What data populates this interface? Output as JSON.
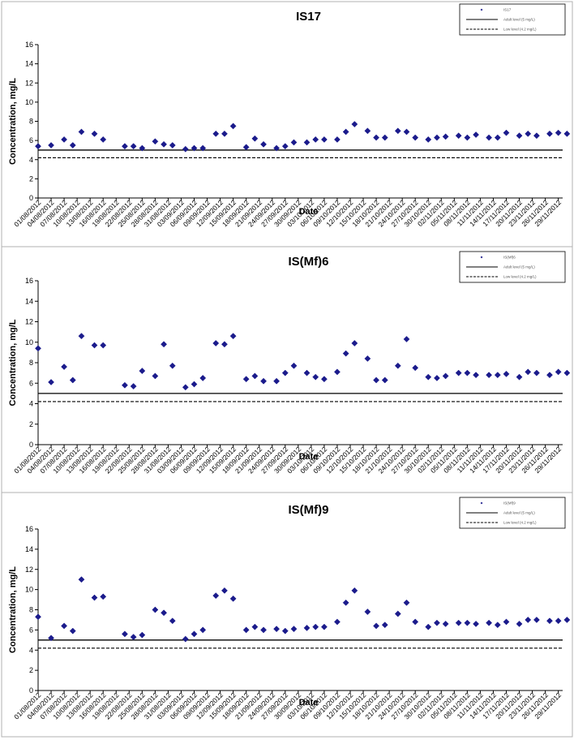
{
  "chart_data": [
    {
      "type": "scatter",
      "title": "IS17",
      "xlabel": "Date",
      "ylabel": "Concentration, mg/L",
      "ylim": [
        0,
        16
      ],
      "yticks": [
        "0",
        "2",
        "4",
        "6",
        "8",
        "10",
        "12",
        "14",
        "16"
      ],
      "x_range": [
        "01/08/2012",
        "30/11/2012"
      ],
      "xticks": [
        "01/08/2012",
        "04/08/2012",
        "07/08/2012",
        "10/08/2012",
        "13/08/2012",
        "16/08/2012",
        "19/08/2012",
        "22/08/2012",
        "25/08/2012",
        "28/08/2012",
        "31/08/2012",
        "03/09/2012",
        "06/09/2012",
        "09/09/2012",
        "12/09/2012",
        "15/09/2012",
        "18/09/2012",
        "21/09/2012",
        "24/09/2012",
        "27/09/2012",
        "30/09/2012",
        "03/10/2012",
        "06/10/2012",
        "09/10/2012",
        "12/10/2012",
        "15/10/2012",
        "18/10/2012",
        "21/10/2012",
        "24/10/2012",
        "27/10/2012",
        "30/10/2012",
        "02/11/2012",
        "05/11/2012",
        "08/11/2012",
        "11/11/2012",
        "14/11/2012",
        "17/11/2012",
        "20/11/2012",
        "23/11/2012",
        "26/11/2012",
        "29/11/2012"
      ],
      "legend": {
        "position": "top-right",
        "entries": [
          "IS17",
          "Adult level (5 mg/L)",
          "Low level (4.2 mg/L)"
        ]
      },
      "grid": false,
      "series": [
        {
          "name": "IS17",
          "marker": "diamond",
          "color": "#1b1b8c",
          "points": [
            [
              "01/08/2012",
              5.4
            ],
            [
              "04/08/2012",
              5.5
            ],
            [
              "07/08/2012",
              6.1
            ],
            [
              "09/08/2012",
              5.5
            ],
            [
              "11/08/2012",
              6.9
            ],
            [
              "14/08/2012",
              6.7
            ],
            [
              "16/08/2012",
              6.1
            ],
            [
              "21/08/2012",
              5.4
            ],
            [
              "23/08/2012",
              5.4
            ],
            [
              "25/08/2012",
              5.2
            ],
            [
              "28/08/2012",
              5.9
            ],
            [
              "30/08/2012",
              5.6
            ],
            [
              "01/09/2012",
              5.5
            ],
            [
              "04/09/2012",
              5.1
            ],
            [
              "06/09/2012",
              5.2
            ],
            [
              "08/09/2012",
              5.2
            ],
            [
              "11/09/2012",
              6.7
            ],
            [
              "13/09/2012",
              6.7
            ],
            [
              "15/09/2012",
              7.5
            ],
            [
              "18/09/2012",
              5.3
            ],
            [
              "20/09/2012",
              6.2
            ],
            [
              "22/09/2012",
              5.6
            ],
            [
              "25/09/2012",
              5.2
            ],
            [
              "27/09/2012",
              5.4
            ],
            [
              "29/09/2012",
              5.8
            ],
            [
              "02/10/2012",
              5.8
            ],
            [
              "04/10/2012",
              6.1
            ],
            [
              "06/10/2012",
              6.1
            ],
            [
              "09/10/2012",
              6.1
            ],
            [
              "11/10/2012",
              6.9
            ],
            [
              "13/10/2012",
              7.7
            ],
            [
              "16/10/2012",
              7.0
            ],
            [
              "18/10/2012",
              6.3
            ],
            [
              "20/10/2012",
              6.3
            ],
            [
              "23/10/2012",
              7.0
            ],
            [
              "25/10/2012",
              6.9
            ],
            [
              "27/10/2012",
              6.3
            ],
            [
              "30/10/2012",
              6.1
            ],
            [
              "01/11/2012",
              6.3
            ],
            [
              "03/11/2012",
              6.4
            ],
            [
              "06/11/2012",
              6.5
            ],
            [
              "08/11/2012",
              6.3
            ],
            [
              "10/11/2012",
              6.6
            ],
            [
              "13/11/2012",
              6.3
            ],
            [
              "15/11/2012",
              6.3
            ],
            [
              "17/11/2012",
              6.8
            ],
            [
              "20/11/2012",
              6.5
            ],
            [
              "22/11/2012",
              6.7
            ],
            [
              "24/11/2012",
              6.5
            ],
            [
              "27/11/2012",
              6.7
            ],
            [
              "29/11/2012",
              6.8
            ],
            [
              "01/12/2012",
              6.7
            ]
          ]
        },
        {
          "name": "Adult level (5 mg/L)",
          "style": "solid",
          "value": 5.0
        },
        {
          "name": "Low level (4.2 mg/L)",
          "style": "dashed",
          "value": 4.2
        }
      ]
    },
    {
      "type": "scatter",
      "title": "IS(Mf)6",
      "xlabel": "Date",
      "ylabel": "Concentration, mg/L",
      "ylim": [
        0,
        16
      ],
      "yticks": [
        "0",
        "2",
        "4",
        "6",
        "8",
        "10",
        "12",
        "14",
        "16"
      ],
      "x_range": [
        "01/08/2012",
        "30/11/2012"
      ],
      "xticks": [
        "01/08/2012",
        "04/08/2012",
        "07/08/2012",
        "10/08/2012",
        "13/08/2012",
        "16/08/2012",
        "19/08/2012",
        "22/08/2012",
        "25/08/2012",
        "28/08/2012",
        "31/08/2012",
        "03/09/2012",
        "06/09/2012",
        "09/09/2012",
        "12/09/2012",
        "15/09/2012",
        "18/09/2012",
        "21/09/2012",
        "24/09/2012",
        "27/09/2012",
        "30/09/2012",
        "03/10/2012",
        "06/10/2012",
        "09/10/2012",
        "12/10/2012",
        "15/10/2012",
        "18/10/2012",
        "21/10/2012",
        "24/10/2012",
        "27/10/2012",
        "30/10/2012",
        "02/11/2012",
        "05/11/2012",
        "08/11/2012",
        "11/11/2012",
        "14/11/2012",
        "17/11/2012",
        "20/11/2012",
        "23/11/2012",
        "26/11/2012",
        "29/11/2012"
      ],
      "legend": {
        "position": "top-right",
        "entries": [
          "IS(Mf)6",
          "Adult level (5 mg/L)",
          "Low level (4.2 mg/L)"
        ]
      },
      "grid": false,
      "series": [
        {
          "name": "IS(Mf)6",
          "marker": "diamond",
          "color": "#1b1b8c",
          "points": [
            [
              "01/08/2012",
              9.4
            ],
            [
              "04/08/2012",
              6.1
            ],
            [
              "07/08/2012",
              7.6
            ],
            [
              "09/08/2012",
              6.3
            ],
            [
              "11/08/2012",
              10.6
            ],
            [
              "14/08/2012",
              9.7
            ],
            [
              "16/08/2012",
              9.7
            ],
            [
              "21/08/2012",
              5.8
            ],
            [
              "23/08/2012",
              5.7
            ],
            [
              "25/08/2012",
              7.2
            ],
            [
              "28/08/2012",
              6.7
            ],
            [
              "30/08/2012",
              9.8
            ],
            [
              "01/09/2012",
              7.7
            ],
            [
              "04/09/2012",
              5.6
            ],
            [
              "06/09/2012",
              5.9
            ],
            [
              "08/09/2012",
              6.5
            ],
            [
              "11/09/2012",
              9.9
            ],
            [
              "13/09/2012",
              9.8
            ],
            [
              "15/09/2012",
              10.6
            ],
            [
              "18/09/2012",
              6.4
            ],
            [
              "20/09/2012",
              6.7
            ],
            [
              "22/09/2012",
              6.2
            ],
            [
              "25/09/2012",
              6.2
            ],
            [
              "27/09/2012",
              7.0
            ],
            [
              "29/09/2012",
              7.7
            ],
            [
              "02/10/2012",
              7.0
            ],
            [
              "04/10/2012",
              6.6
            ],
            [
              "06/10/2012",
              6.4
            ],
            [
              "09/10/2012",
              7.1
            ],
            [
              "11/10/2012",
              8.9
            ],
            [
              "13/10/2012",
              9.9
            ],
            [
              "16/10/2012",
              8.4
            ],
            [
              "18/10/2012",
              6.3
            ],
            [
              "20/10/2012",
              6.3
            ],
            [
              "23/10/2012",
              7.7
            ],
            [
              "25/10/2012",
              10.3
            ],
            [
              "27/10/2012",
              7.5
            ],
            [
              "30/10/2012",
              6.6
            ],
            [
              "01/11/2012",
              6.5
            ],
            [
              "03/11/2012",
              6.7
            ],
            [
              "06/11/2012",
              7.0
            ],
            [
              "08/11/2012",
              7.0
            ],
            [
              "10/11/2012",
              6.8
            ],
            [
              "13/11/2012",
              6.8
            ],
            [
              "15/11/2012",
              6.8
            ],
            [
              "17/11/2012",
              6.9
            ],
            [
              "20/11/2012",
              6.6
            ],
            [
              "22/11/2012",
              7.1
            ],
            [
              "24/11/2012",
              7.0
            ],
            [
              "27/11/2012",
              6.8
            ],
            [
              "29/11/2012",
              7.1
            ],
            [
              "01/12/2012",
              7.0
            ]
          ]
        },
        {
          "name": "Adult level (5 mg/L)",
          "style": "solid",
          "value": 5.0
        },
        {
          "name": "Low level (4.2 mg/L)",
          "style": "dashed",
          "value": 4.2
        }
      ]
    },
    {
      "type": "scatter",
      "title": "IS(Mf)9",
      "xlabel": "Date",
      "ylabel": "Concentration, mg/L",
      "ylim": [
        0,
        16
      ],
      "yticks": [
        "0",
        "2",
        "4",
        "6",
        "8",
        "10",
        "12",
        "14",
        "16"
      ],
      "x_range": [
        "01/08/2012",
        "30/11/2012"
      ],
      "xticks": [
        "01/08/2012",
        "04/08/2012",
        "07/08/2012",
        "10/08/2012",
        "13/08/2012",
        "16/08/2012",
        "19/08/2012",
        "22/08/2012",
        "25/08/2012",
        "28/08/2012",
        "31/08/2012",
        "03/09/2012",
        "06/09/2012",
        "09/09/2012",
        "12/09/2012",
        "15/09/2012",
        "18/09/2012",
        "21/09/2012",
        "24/09/2012",
        "27/09/2012",
        "30/09/2012",
        "03/10/2012",
        "06/10/2012",
        "09/10/2012",
        "12/10/2012",
        "15/10/2012",
        "18/10/2012",
        "21/10/2012",
        "24/10/2012",
        "27/10/2012",
        "30/10/2012",
        "02/11/2012",
        "05/11/2012",
        "08/11/2012",
        "11/11/2012",
        "14/11/2012",
        "17/11/2012",
        "20/11/2012",
        "23/11/2012",
        "26/11/2012",
        "29/11/2012"
      ],
      "legend": {
        "position": "top-right",
        "entries": [
          "IS(Mf)9",
          "Adult level (5 mg/L)",
          "Low level (4.2 mg/L)"
        ]
      },
      "grid": false,
      "series": [
        {
          "name": "IS(Mf)9",
          "marker": "diamond",
          "color": "#1b1b8c",
          "points": [
            [
              "01/08/2012",
              7.3
            ],
            [
              "04/08/2012",
              5.2
            ],
            [
              "07/08/2012",
              6.4
            ],
            [
              "09/08/2012",
              5.9
            ],
            [
              "11/08/2012",
              11.0
            ],
            [
              "14/08/2012",
              9.2
            ],
            [
              "16/08/2012",
              9.3
            ],
            [
              "21/08/2012",
              5.6
            ],
            [
              "23/08/2012",
              5.3
            ],
            [
              "25/08/2012",
              5.5
            ],
            [
              "28/08/2012",
              8.0
            ],
            [
              "30/08/2012",
              7.7
            ],
            [
              "01/09/2012",
              6.9
            ],
            [
              "04/09/2012",
              5.1
            ],
            [
              "06/09/2012",
              5.6
            ],
            [
              "08/09/2012",
              6.0
            ],
            [
              "11/09/2012",
              9.4
            ],
            [
              "13/09/2012",
              9.9
            ],
            [
              "15/09/2012",
              9.1
            ],
            [
              "18/09/2012",
              6.0
            ],
            [
              "20/09/2012",
              6.3
            ],
            [
              "22/09/2012",
              6.0
            ],
            [
              "25/09/2012",
              6.1
            ],
            [
              "27/09/2012",
              5.9
            ],
            [
              "29/09/2012",
              6.1
            ],
            [
              "02/10/2012",
              6.2
            ],
            [
              "04/10/2012",
              6.3
            ],
            [
              "06/10/2012",
              6.3
            ],
            [
              "09/10/2012",
              6.8
            ],
            [
              "11/10/2012",
              8.7
            ],
            [
              "13/10/2012",
              9.9
            ],
            [
              "16/10/2012",
              7.8
            ],
            [
              "18/10/2012",
              6.4
            ],
            [
              "20/10/2012",
              6.5
            ],
            [
              "23/10/2012",
              7.6
            ],
            [
              "25/10/2012",
              8.7
            ],
            [
              "27/10/2012",
              6.8
            ],
            [
              "30/10/2012",
              6.3
            ],
            [
              "01/11/2012",
              6.7
            ],
            [
              "03/11/2012",
              6.6
            ],
            [
              "06/11/2012",
              6.7
            ],
            [
              "08/11/2012",
              6.7
            ],
            [
              "10/11/2012",
              6.6
            ],
            [
              "13/11/2012",
              6.7
            ],
            [
              "15/11/2012",
              6.5
            ],
            [
              "17/11/2012",
              6.8
            ],
            [
              "20/11/2012",
              6.6
            ],
            [
              "22/11/2012",
              7.0
            ],
            [
              "24/11/2012",
              7.0
            ],
            [
              "27/11/2012",
              6.9
            ],
            [
              "29/11/2012",
              6.9
            ],
            [
              "01/12/2012",
              7.0
            ]
          ]
        },
        {
          "name": "Adult level (5 mg/L)",
          "style": "solid",
          "value": 5.0
        },
        {
          "name": "Low level (4.2 mg/L)",
          "style": "dashed",
          "value": 4.2
        }
      ]
    }
  ]
}
